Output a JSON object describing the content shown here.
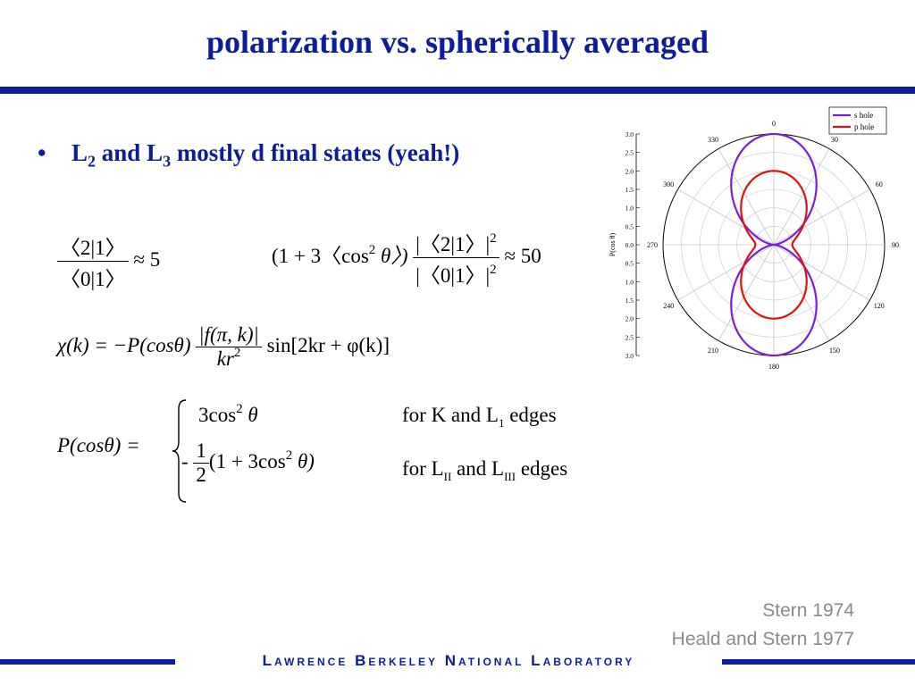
{
  "title": "polarization vs. spherically averaged",
  "bullet": {
    "symbol": "•",
    "l2_letter": "L",
    "l2_sub": "2",
    "and_text": " and L",
    "l3_sub": "3",
    "rest": " mostly d final states (yeah!)"
  },
  "equations": {
    "ratio1_num": "〈2|1〉",
    "ratio1_den": "〈0|1〉",
    "ratio1_result": "≈ 5",
    "ratio2_prefix": "(1 + 3〈cos",
    "ratio2_sup": "2",
    "ratio2_theta": " θ〉)",
    "ratio2_num": "|〈2|1〉|",
    "ratio2_den": "|〈0|1〉|",
    "ratio2_sup_num": "2",
    "ratio2_sup_den": "2",
    "ratio2_result": "≈ 50",
    "chi_lhs": "χ(k) = −P(cosθ)",
    "chi_frac_num": "|f(π, k)|",
    "chi_frac_den": "kr",
    "chi_frac_den_sup": "2",
    "chi_rhs": "sin[2kr + φ(k)]",
    "p_lhs": "P(cosθ) =",
    "case1_expr": "3cos",
    "case1_sup": "2",
    "case1_theta": " θ",
    "case1_cond": "for K and L",
    "case1_cond_sub": "1",
    "case1_cond_end": " edges",
    "case2_minus": "-",
    "case2_frac_num": "1",
    "case2_frac_den": "2",
    "case2_expr": "(1 + 3cos",
    "case2_sup": "2",
    "case2_theta": " θ)",
    "case2_cond": "for L",
    "case2_cond_sub1": "II",
    "case2_cond_mid": " and L",
    "case2_cond_sub2": "III",
    "case2_cond_end": " edges"
  },
  "chart_data": {
    "type": "polar-line",
    "title": "",
    "radial_label": "P(cos θ)",
    "radial_ticks": [
      "0.0",
      "0.5",
      "1.0",
      "1.5",
      "2.0",
      "2.5",
      "3.0"
    ],
    "angle_ticks": [
      "0",
      "30",
      "60",
      "90",
      "120",
      "150",
      "180",
      "210",
      "240",
      "270",
      "300",
      "330"
    ],
    "rlim": [
      0,
      3.0
    ],
    "legend_placement": "top-right",
    "series": [
      {
        "name": "s hole",
        "color": "#7a1fd6",
        "formula": "3cos^2(theta)"
      },
      {
        "name": "p hole",
        "color": "#e01010",
        "formula": "(1+3cos^2(theta))/2"
      }
    ]
  },
  "citations": [
    "Stern 1974",
    "Heald and Stern 1977"
  ],
  "footer": "Lawrence Berkeley National Laboratory",
  "colors": {
    "accent": "#0b1c9c",
    "citation": "#8a8a8a"
  }
}
